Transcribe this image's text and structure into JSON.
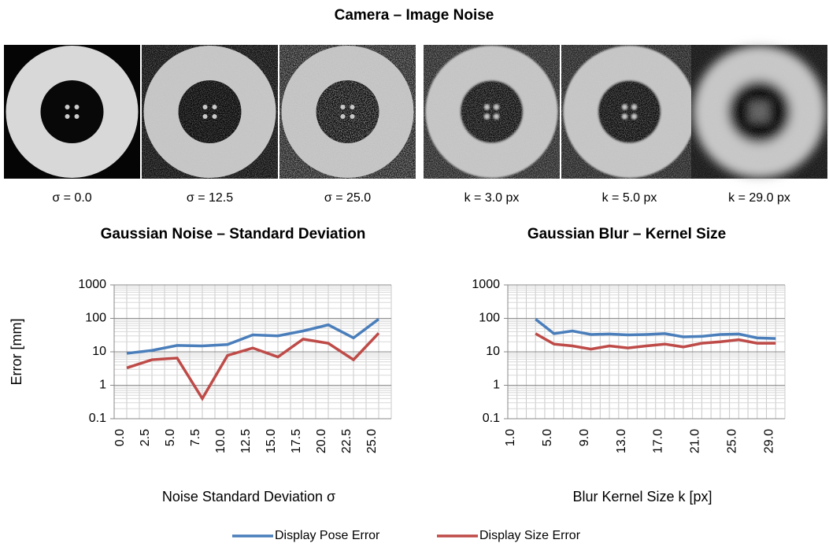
{
  "title": "Camera – Image Noise",
  "images": [
    {
      "label": "σ = 0.0"
    },
    {
      "label": "σ = 12.5"
    },
    {
      "label": "σ = 25.0"
    },
    {
      "label": "k = 3.0 px"
    },
    {
      "label": "k = 5.0 px"
    },
    {
      "label": "k = 29.0 px"
    }
  ],
  "chart_data": [
    {
      "type": "line",
      "title": "Gaussian Noise – Standard Deviation",
      "y_label": "Error [mm]",
      "x_label": "Noise Standard Deviation σ",
      "log_scale": true,
      "grid": true,
      "categories": [
        "0.0",
        "2.5",
        "5.0",
        "7.5",
        "10.0",
        "12.5",
        "15.0",
        "17.5",
        "20.0",
        "22.5",
        "25.0"
      ],
      "ylim": [
        0.1,
        1000
      ],
      "yticks": [
        0.1,
        1,
        10,
        100,
        1000
      ],
      "series": [
        {
          "name": "Display Pose Error",
          "color": "#4a7ebb",
          "values": [
            9,
            11,
            15.5,
            15,
            16.5,
            32,
            30,
            42,
            64,
            26,
            95
          ]
        },
        {
          "name": "Display Size Error",
          "color": "#be4b48",
          "values": [
            3.3,
            5.8,
            6.5,
            0.4,
            7.8,
            13,
            7,
            24,
            18,
            5.8,
            36
          ]
        }
      ]
    },
    {
      "type": "line",
      "title": "Gaussian Blur – Kernel Size",
      "x_label": "Blur Kernel Size k [px]",
      "log_scale": true,
      "grid": true,
      "categories": [
        "1.0",
        null,
        "5.0",
        null,
        "9.0",
        null,
        "13.0",
        null,
        "17.0",
        null,
        "21.0",
        null,
        "25.0",
        null,
        "29.0"
      ],
      "ylim": [
        0.1,
        1000
      ],
      "yticks": [
        0.1,
        1,
        10,
        100,
        1000
      ],
      "series": [
        {
          "name": "Display Pose Error",
          "color": "#4a7ebb",
          "values": [
            null,
            95,
            35,
            42,
            33,
            34,
            32,
            33,
            35,
            28,
            29,
            33,
            34,
            26,
            25
          ]
        },
        {
          "name": "Display Size Error",
          "color": "#be4b48",
          "values": [
            null,
            35,
            17,
            15,
            12,
            15,
            13,
            15,
            17,
            14,
            18,
            20,
            23,
            18,
            18
          ]
        }
      ]
    }
  ]
}
